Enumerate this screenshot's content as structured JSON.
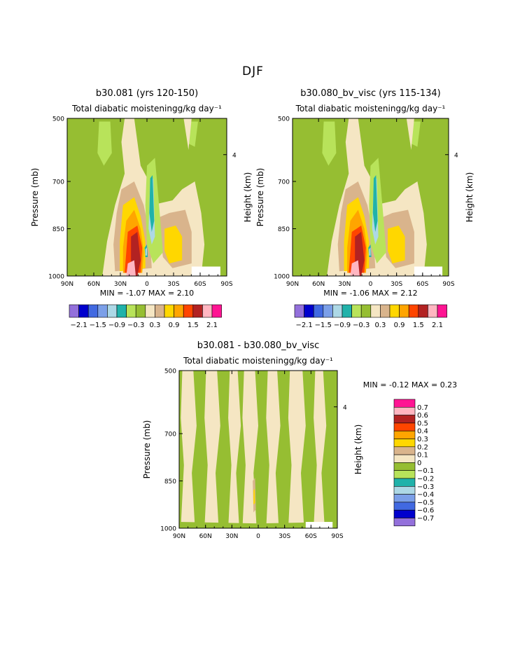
{
  "page": {
    "title": "DJF"
  },
  "colors": {
    "c-2.1": "#9370DB",
    "c-1.8": "#0000CD",
    "c-1.5": "#4169E1",
    "c-1.2": "#7B9FE8",
    "c-0.9": "#ADD8E6",
    "c-0.6": "#20B2AA",
    "c-0.3": "#B8E35A",
    "c0": "#96BE32",
    "c0.3": "#F5E6C3",
    "c0.6": "#D9B48C",
    "c0.9": "#FFD700",
    "c1.2": "#FFA500",
    "c1.5": "#FF4500",
    "c1.8": "#B22222",
    "c2.1": "#FFB6C1",
    "c2.4": "#FF1493"
  },
  "chart_data": [
    {
      "type": "heatmap",
      "title": "b30.081 (yrs 120-150)",
      "subtitle": "Total diabatic moisteningg/kg day⁻¹",
      "xlabel": "",
      "ylabel": "Pressure (mb)",
      "ylabel_right": "Height (km)",
      "x_ticks": [
        "90N",
        "60N",
        "30N",
        "0",
        "30S",
        "60S",
        "90S"
      ],
      "y_ticks": [
        "500",
        "700",
        "850",
        "1000"
      ],
      "y_right_ticks": [
        "4"
      ],
      "xlim": [
        -90,
        90
      ],
      "ylim": [
        1000,
        500
      ],
      "min": "-1.07",
      "max": "2.10",
      "stats_text": "MIN =   -1.07   MAX =     2.10",
      "colorbar_labels": [
        "-2.1",
        "-1.5",
        "-0.9",
        "-0.3",
        "0.3",
        "0.9",
        "1.5",
        "2.1"
      ],
      "colorbar_levels": [
        -2.1,
        -1.8,
        -1.5,
        -1.2,
        -0.9,
        -0.6,
        -0.3,
        0,
        0.3,
        0.6,
        0.9,
        1.2,
        1.5,
        1.8,
        2.1,
        2.4
      ]
    },
    {
      "type": "heatmap",
      "title": "b30.080_bv_visc (yrs 115-134)",
      "subtitle": "Total diabatic moisteningg/kg day⁻¹",
      "xlabel": "",
      "ylabel": "Pressure (mb)",
      "ylabel_right": "Height (km)",
      "x_ticks": [
        "90N",
        "60N",
        "30N",
        "0",
        "30S",
        "60S",
        "90S"
      ],
      "y_ticks": [
        "500",
        "700",
        "850",
        "1000"
      ],
      "y_right_ticks": [
        "4"
      ],
      "xlim": [
        -90,
        90
      ],
      "ylim": [
        1000,
        500
      ],
      "min": "-1.06",
      "max": "2.12",
      "stats_text": "MIN =   -1.06   MAX =     2.12",
      "colorbar_labels": [
        "-2.1",
        "-1.5",
        "-0.9",
        "-0.3",
        "0.3",
        "0.9",
        "1.5",
        "2.1"
      ],
      "colorbar_levels": [
        -2.1,
        -1.8,
        -1.5,
        -1.2,
        -0.9,
        -0.6,
        -0.3,
        0,
        0.3,
        0.6,
        0.9,
        1.2,
        1.5,
        1.8,
        2.1,
        2.4
      ]
    },
    {
      "type": "heatmap",
      "title": "b30.081 - b30.080_bv_visc",
      "subtitle": "Total diabatic moisteningg/kg day⁻¹",
      "xlabel": "",
      "ylabel": "Pressure (mb)",
      "ylabel_right": "Height (km)",
      "x_ticks": [
        "90N",
        "60N",
        "30N",
        "0",
        "30S",
        "60S",
        "90S"
      ],
      "y_ticks": [
        "500",
        "700",
        "850",
        "1000"
      ],
      "y_right_ticks": [
        "4"
      ],
      "xlim": [
        -90,
        90
      ],
      "ylim": [
        1000,
        500
      ],
      "min": "-0.12",
      "max": "0.23",
      "stats_text": "MIN =   -0.12   MAX =     0.23",
      "colorbar_labels": [
        "0.7",
        "0.6",
        "0.5",
        "0.4",
        "0.3",
        "0.2",
        "0.1",
        "0",
        "-0.1",
        "-0.2",
        "-0.3",
        "-0.4",
        "-0.5",
        "-0.6",
        "-0.7"
      ],
      "colorbar_colors": [
        "#FF1493",
        "#FFB6C1",
        "#B22222",
        "#FF4500",
        "#FFA500",
        "#FFD700",
        "#D9B48C",
        "#F5E6C3",
        "#96BE32",
        "#B8E35A",
        "#20B2AA",
        "#ADD8E6",
        "#7B9FE8",
        "#4169E1",
        "#0000CD",
        "#9370DB"
      ]
    }
  ]
}
